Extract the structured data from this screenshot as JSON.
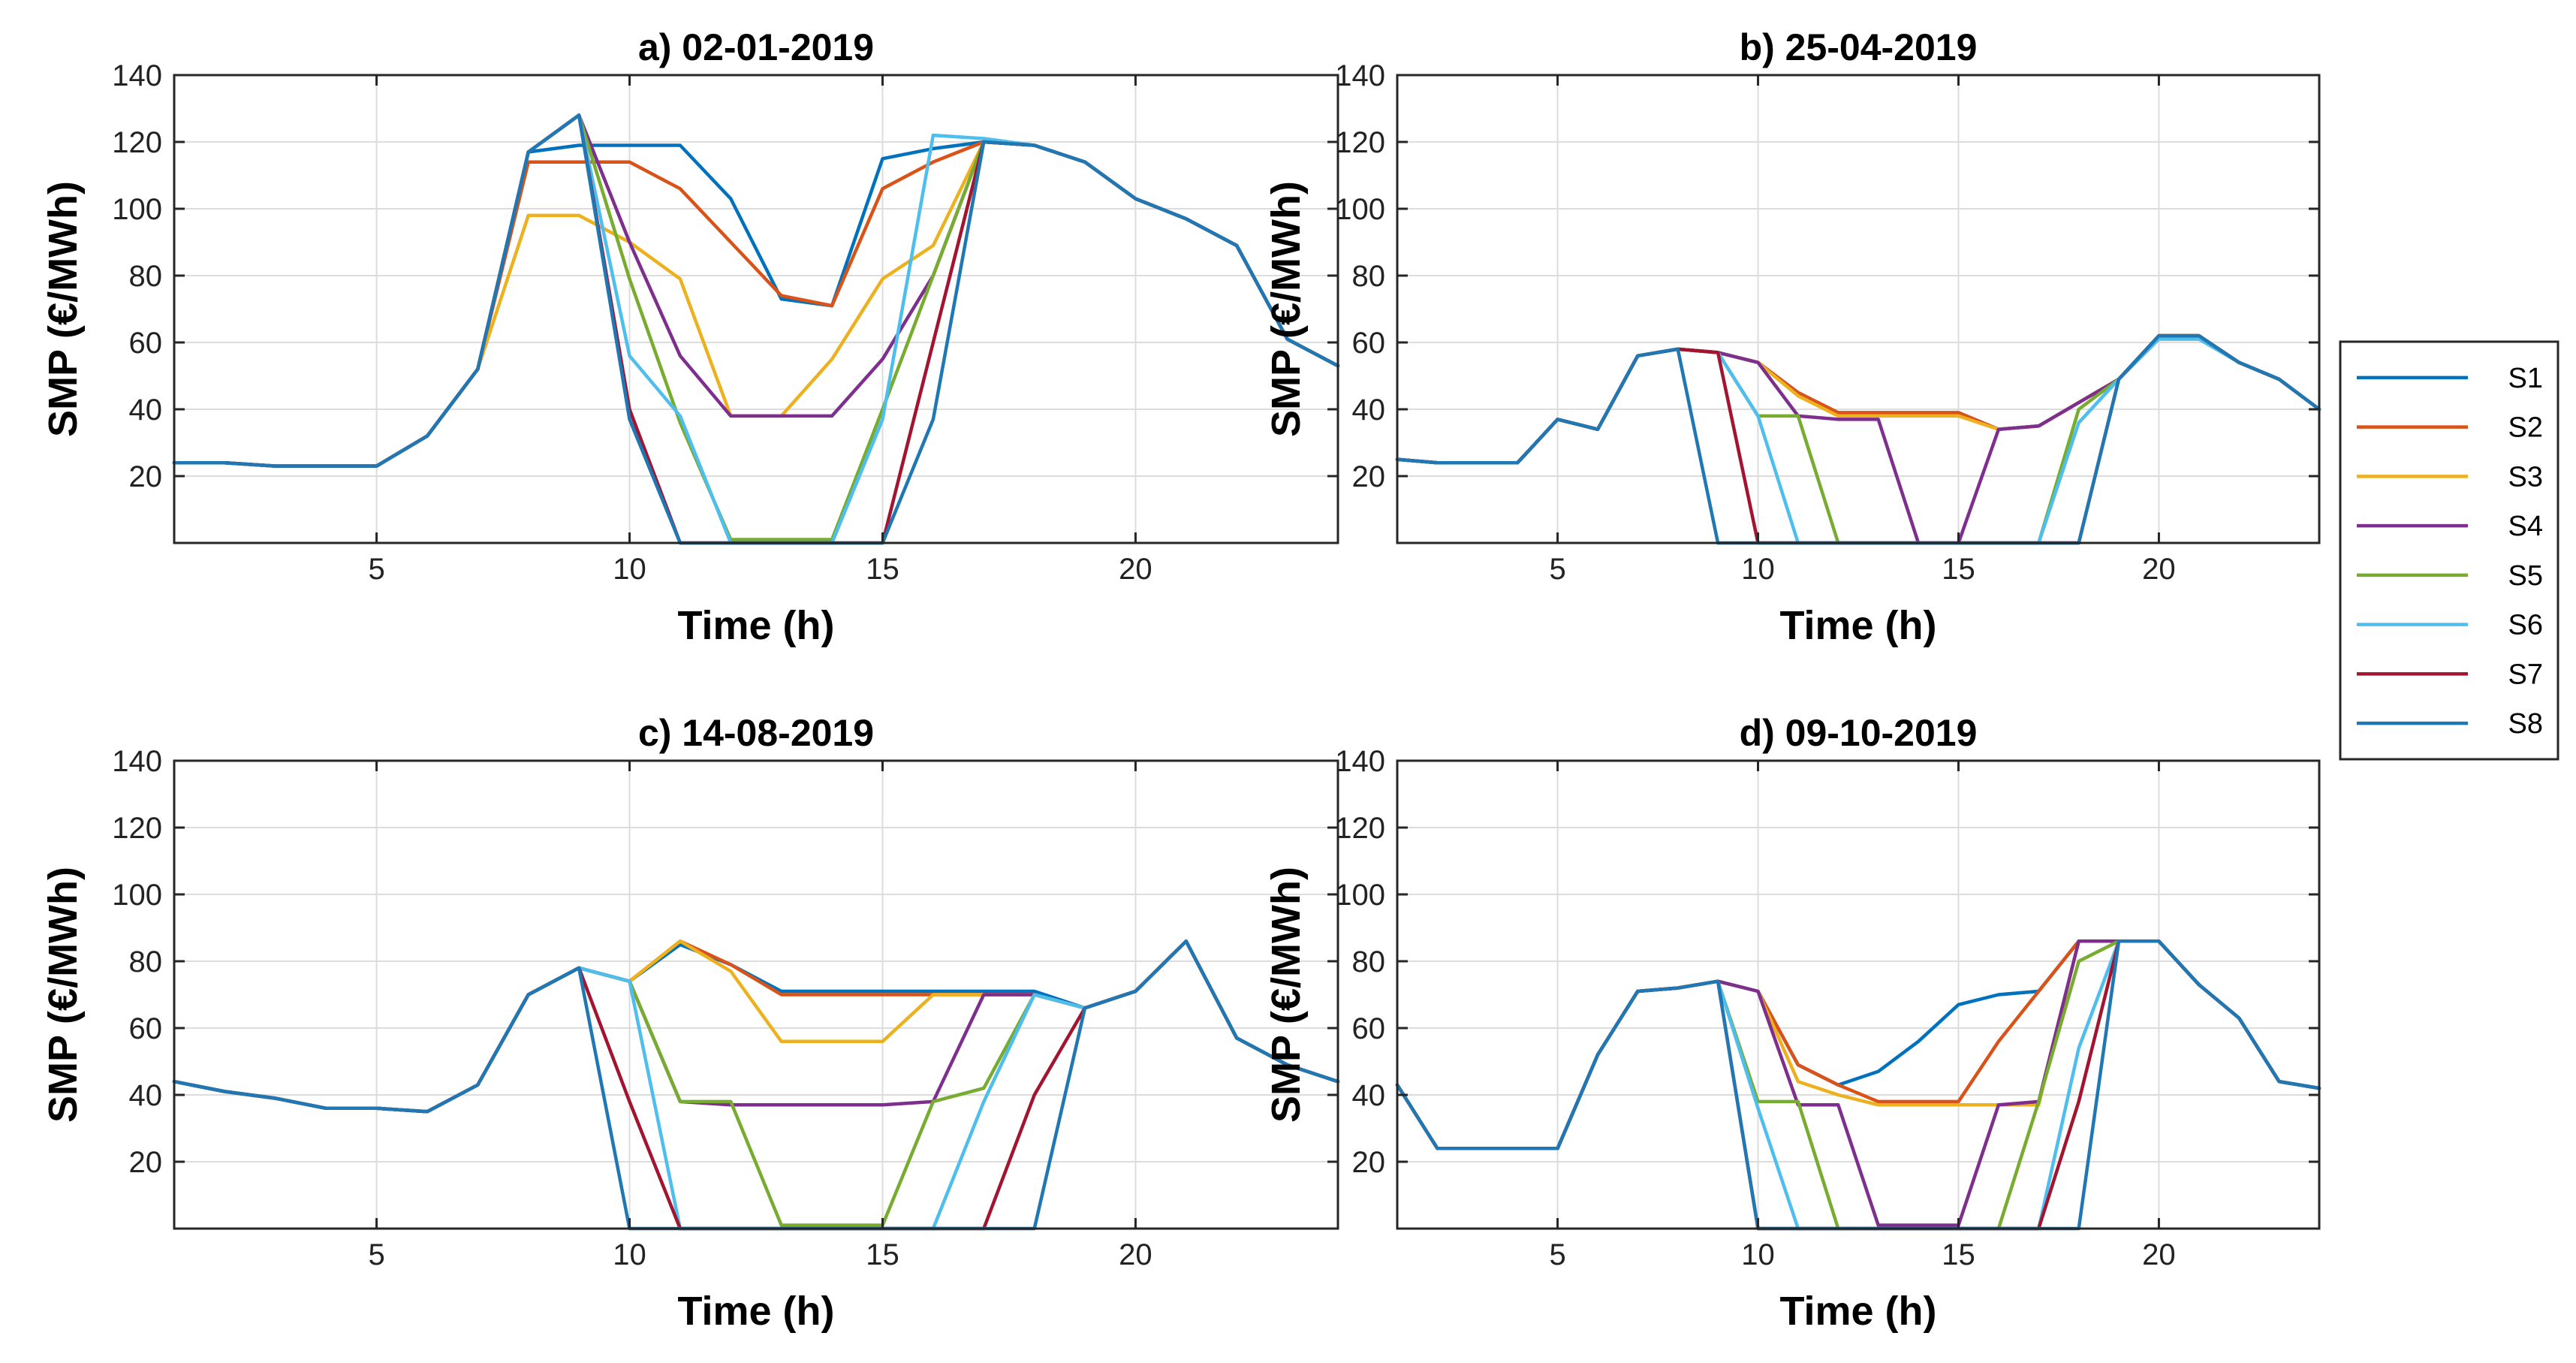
{
  "figure": {
    "legend": {
      "position": "right",
      "entries": [
        "S1",
        "S2",
        "S3",
        "S4",
        "S5",
        "S6",
        "S7",
        "S8"
      ]
    }
  },
  "series_colors": {
    "S1": "#0072BD",
    "S2": "#D95319",
    "S3": "#EDB120",
    "S4": "#7E2F8E",
    "S5": "#77AC30",
    "S6": "#4DBEEE",
    "S7": "#A2142F",
    "S8": "#1F77B4"
  },
  "chart_data": [
    {
      "type": "line",
      "title": "a) 02-01-2019",
      "xlabel": "Time (h)",
      "ylabel": "SMP (€/MWh)",
      "xlim": [
        1,
        24
      ],
      "ylim": [
        0,
        140
      ],
      "xticks": [
        5,
        10,
        15,
        20
      ],
      "yticks": [
        20,
        40,
        60,
        80,
        100,
        120,
        140
      ],
      "grid": true,
      "x": [
        1,
        2,
        3,
        4,
        5,
        6,
        7,
        8,
        9,
        10,
        11,
        12,
        13,
        14,
        15,
        16,
        17,
        18,
        19,
        20,
        21,
        22,
        23,
        24
      ],
      "series": [
        {
          "name": "S1",
          "values": [
            24,
            24,
            23,
            23,
            23,
            32,
            52,
            117,
            119,
            119,
            119,
            103,
            73,
            71,
            115,
            118,
            120,
            119,
            114,
            103,
            97,
            89,
            61,
            53
          ]
        },
        {
          "name": "S2",
          "values": [
            24,
            24,
            23,
            23,
            23,
            32,
            52,
            114,
            114,
            114,
            106,
            90,
            74,
            71,
            106,
            114,
            120,
            119,
            114,
            103,
            97,
            89,
            61,
            53
          ]
        },
        {
          "name": "S3",
          "values": [
            24,
            24,
            23,
            23,
            23,
            32,
            52,
            98,
            98,
            90,
            79,
            38,
            38,
            55,
            79,
            89,
            120,
            119,
            114,
            103,
            97,
            89,
            61,
            53
          ]
        },
        {
          "name": "S4",
          "values": [
            24,
            24,
            23,
            23,
            23,
            32,
            52,
            117,
            128,
            90,
            56,
            38,
            38,
            38,
            55,
            80,
            120,
            119,
            114,
            103,
            97,
            89,
            61,
            53
          ]
        },
        {
          "name": "S5",
          "values": [
            24,
            24,
            23,
            23,
            23,
            32,
            52,
            117,
            128,
            79,
            36,
            1,
            1,
            1,
            40,
            80,
            120,
            119,
            114,
            103,
            97,
            89,
            61,
            53
          ]
        },
        {
          "name": "S6",
          "values": [
            24,
            24,
            23,
            23,
            23,
            32,
            52,
            117,
            128,
            56,
            38,
            0,
            0,
            0,
            37,
            122,
            121,
            119,
            114,
            103,
            97,
            89,
            61,
            53
          ]
        },
        {
          "name": "S7",
          "values": [
            24,
            24,
            23,
            23,
            23,
            32,
            52,
            117,
            128,
            40,
            0,
            0,
            0,
            0,
            0,
            60,
            120,
            119,
            114,
            103,
            97,
            89,
            61,
            53
          ]
        },
        {
          "name": "S8",
          "values": [
            24,
            24,
            23,
            23,
            23,
            32,
            52,
            117,
            128,
            37,
            0,
            0,
            0,
            0,
            0,
            37,
            120,
            119,
            114,
            103,
            97,
            89,
            61,
            53
          ]
        }
      ]
    },
    {
      "type": "line",
      "title": "b) 25-04-2019",
      "xlabel": "Time (h)",
      "ylabel": "SMP (€/MWh)",
      "xlim": [
        1,
        24
      ],
      "ylim": [
        0,
        140
      ],
      "xticks": [
        5,
        10,
        15,
        20
      ],
      "yticks": [
        20,
        40,
        60,
        80,
        100,
        120,
        140
      ],
      "grid": true,
      "x": [
        1,
        2,
        3,
        4,
        5,
        6,
        7,
        8,
        9,
        10,
        11,
        12,
        13,
        14,
        15,
        16,
        17,
        18,
        19,
        20,
        21,
        22,
        23,
        24
      ],
      "series": [
        {
          "name": "S1",
          "values": [
            25,
            24,
            24,
            24,
            37,
            34,
            56,
            58,
            57,
            54,
            45,
            39,
            39,
            39,
            39,
            34,
            35,
            42,
            49,
            62,
            62,
            54,
            49,
            40
          ]
        },
        {
          "name": "S2",
          "values": [
            25,
            24,
            24,
            24,
            37,
            34,
            56,
            58,
            57,
            54,
            45,
            39,
            39,
            39,
            39,
            34,
            35,
            42,
            49,
            62,
            62,
            54,
            49,
            40
          ]
        },
        {
          "name": "S3",
          "values": [
            25,
            24,
            24,
            24,
            37,
            34,
            56,
            58,
            57,
            54,
            44,
            38,
            38,
            38,
            38,
            34,
            35,
            42,
            49,
            62,
            62,
            54,
            49,
            40
          ]
        },
        {
          "name": "S4",
          "values": [
            25,
            24,
            24,
            24,
            37,
            34,
            56,
            58,
            57,
            54,
            38,
            37,
            37,
            0,
            0,
            34,
            35,
            42,
            49,
            62,
            62,
            54,
            49,
            40
          ]
        },
        {
          "name": "S5",
          "values": [
            25,
            24,
            24,
            24,
            37,
            34,
            56,
            58,
            57,
            38,
            38,
            0,
            0,
            0,
            0,
            0,
            0,
            40,
            49,
            62,
            62,
            54,
            49,
            40
          ]
        },
        {
          "name": "S6",
          "values": [
            25,
            24,
            24,
            24,
            37,
            34,
            56,
            58,
            57,
            38,
            0,
            0,
            0,
            0,
            0,
            0,
            0,
            36,
            49,
            61,
            61,
            54,
            49,
            40
          ]
        },
        {
          "name": "S7",
          "values": [
            25,
            24,
            24,
            24,
            37,
            34,
            56,
            58,
            57,
            0,
            0,
            0,
            0,
            0,
            0,
            0,
            0,
            0,
            49,
            62,
            62,
            54,
            49,
            40
          ]
        },
        {
          "name": "S8",
          "values": [
            25,
            24,
            24,
            24,
            37,
            34,
            56,
            58,
            0,
            0,
            0,
            0,
            0,
            0,
            0,
            0,
            0,
            0,
            49,
            62,
            62,
            54,
            49,
            40
          ]
        }
      ]
    },
    {
      "type": "line",
      "title": "c) 14-08-2019",
      "xlabel": "Time (h)",
      "ylabel": "SMP (€/MWh)",
      "xlim": [
        1,
        24
      ],
      "ylim": [
        0,
        140
      ],
      "xticks": [
        5,
        10,
        15,
        20
      ],
      "yticks": [
        20,
        40,
        60,
        80,
        100,
        120,
        140
      ],
      "grid": true,
      "x": [
        1,
        2,
        3,
        4,
        5,
        6,
        7,
        8,
        9,
        10,
        11,
        12,
        13,
        14,
        15,
        16,
        17,
        18,
        19,
        20,
        21,
        22,
        23,
        24
      ],
      "series": [
        {
          "name": "S1",
          "values": [
            44,
            41,
            39,
            36,
            36,
            35,
            43,
            70,
            78,
            74,
            85,
            79,
            71,
            71,
            71,
            71,
            71,
            71,
            66,
            71,
            86,
            57,
            49,
            44
          ]
        },
        {
          "name": "S2",
          "values": [
            44,
            41,
            39,
            36,
            36,
            35,
            43,
            70,
            78,
            74,
            86,
            79,
            70,
            70,
            70,
            70,
            70,
            70,
            66,
            71,
            86,
            57,
            49,
            44
          ]
        },
        {
          "name": "S3",
          "values": [
            44,
            41,
            39,
            36,
            36,
            35,
            43,
            70,
            78,
            74,
            86,
            77,
            56,
            56,
            56,
            70,
            70,
            70,
            66,
            71,
            86,
            57,
            49,
            44
          ]
        },
        {
          "name": "S4",
          "values": [
            44,
            41,
            39,
            36,
            36,
            35,
            43,
            70,
            78,
            74,
            38,
            37,
            37,
            37,
            37,
            38,
            70,
            70,
            66,
            71,
            86,
            57,
            49,
            44
          ]
        },
        {
          "name": "S5",
          "values": [
            44,
            41,
            39,
            36,
            36,
            35,
            43,
            70,
            78,
            74,
            38,
            38,
            1,
            1,
            1,
            38,
            42,
            70,
            66,
            71,
            86,
            57,
            49,
            44
          ]
        },
        {
          "name": "S6",
          "values": [
            44,
            41,
            39,
            36,
            36,
            35,
            43,
            70,
            78,
            74,
            0,
            0,
            0,
            0,
            0,
            0,
            38,
            70,
            66,
            71,
            86,
            57,
            49,
            44
          ]
        },
        {
          "name": "S7",
          "values": [
            44,
            41,
            39,
            36,
            36,
            35,
            43,
            70,
            78,
            38,
            0,
            0,
            0,
            0,
            0,
            0,
            0,
            40,
            66,
            71,
            86,
            57,
            49,
            44
          ]
        },
        {
          "name": "S8",
          "values": [
            44,
            41,
            39,
            36,
            36,
            35,
            43,
            70,
            78,
            0,
            0,
            0,
            0,
            0,
            0,
            0,
            0,
            0,
            66,
            71,
            86,
            57,
            49,
            44
          ]
        }
      ]
    },
    {
      "type": "line",
      "title": "d) 09-10-2019",
      "xlabel": "Time (h)",
      "ylabel": "SMP (€/MWh)",
      "xlim": [
        1,
        24
      ],
      "ylim": [
        0,
        140
      ],
      "xticks": [
        5,
        10,
        15,
        20
      ],
      "yticks": [
        20,
        40,
        60,
        80,
        100,
        120,
        140
      ],
      "grid": true,
      "x": [
        1,
        2,
        3,
        4,
        5,
        6,
        7,
        8,
        9,
        10,
        11,
        12,
        13,
        14,
        15,
        16,
        17,
        18,
        19,
        20,
        21,
        22,
        23,
        24
      ],
      "series": [
        {
          "name": "S1",
          "values": [
            43,
            24,
            24,
            24,
            24,
            52,
            71,
            72,
            74,
            71,
            49,
            43,
            47,
            56,
            67,
            70,
            71,
            86,
            86,
            86,
            73,
            63,
            44,
            42
          ]
        },
        {
          "name": "S2",
          "values": [
            43,
            24,
            24,
            24,
            24,
            52,
            71,
            72,
            74,
            71,
            49,
            43,
            38,
            38,
            38,
            56,
            71,
            86,
            86,
            86,
            73,
            63,
            44,
            42
          ]
        },
        {
          "name": "S3",
          "values": [
            43,
            24,
            24,
            24,
            24,
            52,
            71,
            72,
            74,
            71,
            44,
            40,
            37,
            37,
            37,
            37,
            37,
            86,
            86,
            86,
            73,
            63,
            44,
            42
          ]
        },
        {
          "name": "S4",
          "values": [
            43,
            24,
            24,
            24,
            24,
            52,
            71,
            72,
            74,
            71,
            37,
            37,
            1,
            1,
            1,
            37,
            38,
            86,
            86,
            86,
            73,
            63,
            44,
            42
          ]
        },
        {
          "name": "S5",
          "values": [
            43,
            24,
            24,
            24,
            24,
            52,
            71,
            72,
            74,
            38,
            38,
            0,
            0,
            0,
            0,
            0,
            38,
            80,
            86,
            86,
            73,
            63,
            44,
            42
          ]
        },
        {
          "name": "S6",
          "values": [
            43,
            24,
            24,
            24,
            24,
            52,
            71,
            72,
            74,
            36,
            0,
            0,
            0,
            0,
            0,
            0,
            0,
            54,
            86,
            86,
            73,
            63,
            44,
            42
          ]
        },
        {
          "name": "S7",
          "values": [
            43,
            24,
            24,
            24,
            24,
            52,
            71,
            72,
            74,
            0,
            0,
            0,
            0,
            0,
            0,
            0,
            0,
            38,
            86,
            86,
            73,
            63,
            44,
            42
          ]
        },
        {
          "name": "S8",
          "values": [
            43,
            24,
            24,
            24,
            24,
            52,
            71,
            72,
            74,
            0,
            0,
            0,
            0,
            0,
            0,
            0,
            0,
            0,
            86,
            86,
            73,
            63,
            44,
            42
          ]
        }
      ]
    }
  ]
}
